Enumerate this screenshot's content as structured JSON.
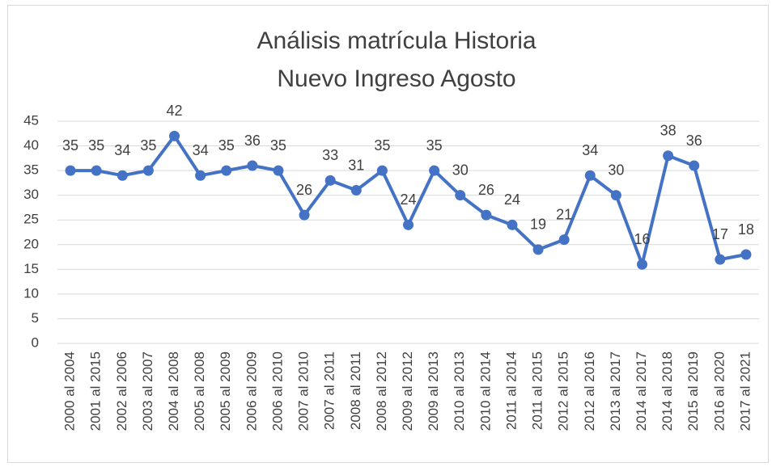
{
  "chart_data": {
    "type": "line",
    "title": [
      "Análisis matrícula Historia",
      "Nuevo Ingreso Agosto"
    ],
    "categories": [
      "2000 al 2004",
      "2001 al 2015",
      "2002 al 2006",
      "2003 al 2007",
      "2004 al 2008",
      "2005 al 2008",
      "2005 al 2009",
      "2006 al 2009",
      "2006 al 2010",
      "2007 al 2010",
      "2007 al 2011",
      "2008 al 2011",
      "2008 al 2012",
      "2009 al 2012",
      "2009 al 2013",
      "2010 al 2013",
      "2010 al 2014",
      "2011 al 2014",
      "2011 al 2015",
      "2012 al 2015",
      "2012 al 2016",
      "2013 al 2017",
      "2014 al 2017",
      "2014 al 2018",
      "2015 al 2019",
      "2016 al 2020",
      "2017 al 2021"
    ],
    "values": [
      35,
      35,
      34,
      35,
      42,
      34,
      35,
      36,
      35,
      26,
      33,
      31,
      35,
      24,
      35,
      30,
      26,
      24,
      19,
      21,
      34,
      30,
      16,
      38,
      36,
      17,
      18
    ],
    "color": "#4472c4",
    "ylim": [
      0,
      45
    ],
    "yticks": [
      0,
      5,
      10,
      15,
      20,
      25,
      30,
      35,
      40,
      45
    ],
    "grid": true
  }
}
